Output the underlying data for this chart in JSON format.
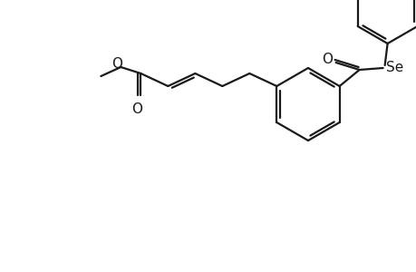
{
  "bg_color": "#ffffff",
  "line_color": "#1a1a1a",
  "line_width": 1.6,
  "font_size": 11,
  "label_O": "O",
  "label_Se": "Se"
}
